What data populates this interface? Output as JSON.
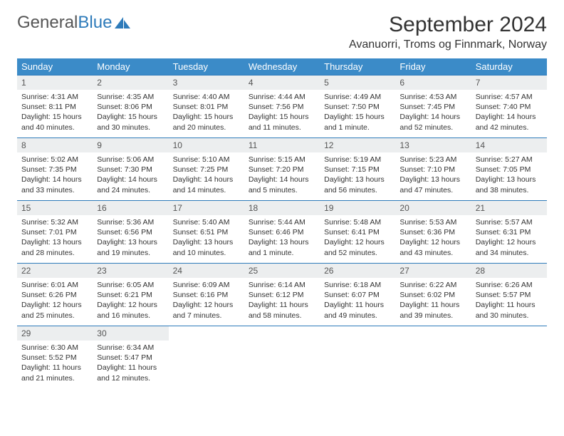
{
  "brand": {
    "part1": "General",
    "part2": "Blue"
  },
  "title": "September 2024",
  "location": "Avanuorri, Troms og Finnmark, Norway",
  "colors": {
    "header_bg": "#3b8bc8",
    "border": "#2e7bba",
    "daynum_bg": "#eceeef",
    "text": "#333333"
  },
  "weekdays": [
    "Sunday",
    "Monday",
    "Tuesday",
    "Wednesday",
    "Thursday",
    "Friday",
    "Saturday"
  ],
  "days": [
    {
      "n": "1",
      "sr": "4:31 AM",
      "ss": "8:11 PM",
      "dl": "15 hours and 40 minutes."
    },
    {
      "n": "2",
      "sr": "4:35 AM",
      "ss": "8:06 PM",
      "dl": "15 hours and 30 minutes."
    },
    {
      "n": "3",
      "sr": "4:40 AM",
      "ss": "8:01 PM",
      "dl": "15 hours and 20 minutes."
    },
    {
      "n": "4",
      "sr": "4:44 AM",
      "ss": "7:56 PM",
      "dl": "15 hours and 11 minutes."
    },
    {
      "n": "5",
      "sr": "4:49 AM",
      "ss": "7:50 PM",
      "dl": "15 hours and 1 minute."
    },
    {
      "n": "6",
      "sr": "4:53 AM",
      "ss": "7:45 PM",
      "dl": "14 hours and 52 minutes."
    },
    {
      "n": "7",
      "sr": "4:57 AM",
      "ss": "7:40 PM",
      "dl": "14 hours and 42 minutes."
    },
    {
      "n": "8",
      "sr": "5:02 AM",
      "ss": "7:35 PM",
      "dl": "14 hours and 33 minutes."
    },
    {
      "n": "9",
      "sr": "5:06 AM",
      "ss": "7:30 PM",
      "dl": "14 hours and 24 minutes."
    },
    {
      "n": "10",
      "sr": "5:10 AM",
      "ss": "7:25 PM",
      "dl": "14 hours and 14 minutes."
    },
    {
      "n": "11",
      "sr": "5:15 AM",
      "ss": "7:20 PM",
      "dl": "14 hours and 5 minutes."
    },
    {
      "n": "12",
      "sr": "5:19 AM",
      "ss": "7:15 PM",
      "dl": "13 hours and 56 minutes."
    },
    {
      "n": "13",
      "sr": "5:23 AM",
      "ss": "7:10 PM",
      "dl": "13 hours and 47 minutes."
    },
    {
      "n": "14",
      "sr": "5:27 AM",
      "ss": "7:05 PM",
      "dl": "13 hours and 38 minutes."
    },
    {
      "n": "15",
      "sr": "5:32 AM",
      "ss": "7:01 PM",
      "dl": "13 hours and 28 minutes."
    },
    {
      "n": "16",
      "sr": "5:36 AM",
      "ss": "6:56 PM",
      "dl": "13 hours and 19 minutes."
    },
    {
      "n": "17",
      "sr": "5:40 AM",
      "ss": "6:51 PM",
      "dl": "13 hours and 10 minutes."
    },
    {
      "n": "18",
      "sr": "5:44 AM",
      "ss": "6:46 PM",
      "dl": "13 hours and 1 minute."
    },
    {
      "n": "19",
      "sr": "5:48 AM",
      "ss": "6:41 PM",
      "dl": "12 hours and 52 minutes."
    },
    {
      "n": "20",
      "sr": "5:53 AM",
      "ss": "6:36 PM",
      "dl": "12 hours and 43 minutes."
    },
    {
      "n": "21",
      "sr": "5:57 AM",
      "ss": "6:31 PM",
      "dl": "12 hours and 34 minutes."
    },
    {
      "n": "22",
      "sr": "6:01 AM",
      "ss": "6:26 PM",
      "dl": "12 hours and 25 minutes."
    },
    {
      "n": "23",
      "sr": "6:05 AM",
      "ss": "6:21 PM",
      "dl": "12 hours and 16 minutes."
    },
    {
      "n": "24",
      "sr": "6:09 AM",
      "ss": "6:16 PM",
      "dl": "12 hours and 7 minutes."
    },
    {
      "n": "25",
      "sr": "6:14 AM",
      "ss": "6:12 PM",
      "dl": "11 hours and 58 minutes."
    },
    {
      "n": "26",
      "sr": "6:18 AM",
      "ss": "6:07 PM",
      "dl": "11 hours and 49 minutes."
    },
    {
      "n": "27",
      "sr": "6:22 AM",
      "ss": "6:02 PM",
      "dl": "11 hours and 39 minutes."
    },
    {
      "n": "28",
      "sr": "6:26 AM",
      "ss": "5:57 PM",
      "dl": "11 hours and 30 minutes."
    },
    {
      "n": "29",
      "sr": "6:30 AM",
      "ss": "5:52 PM",
      "dl": "11 hours and 21 minutes."
    },
    {
      "n": "30",
      "sr": "6:34 AM",
      "ss": "5:47 PM",
      "dl": "11 hours and 12 minutes."
    }
  ],
  "labels": {
    "sunrise": "Sunrise:",
    "sunset": "Sunset:",
    "daylight": "Daylight:"
  }
}
